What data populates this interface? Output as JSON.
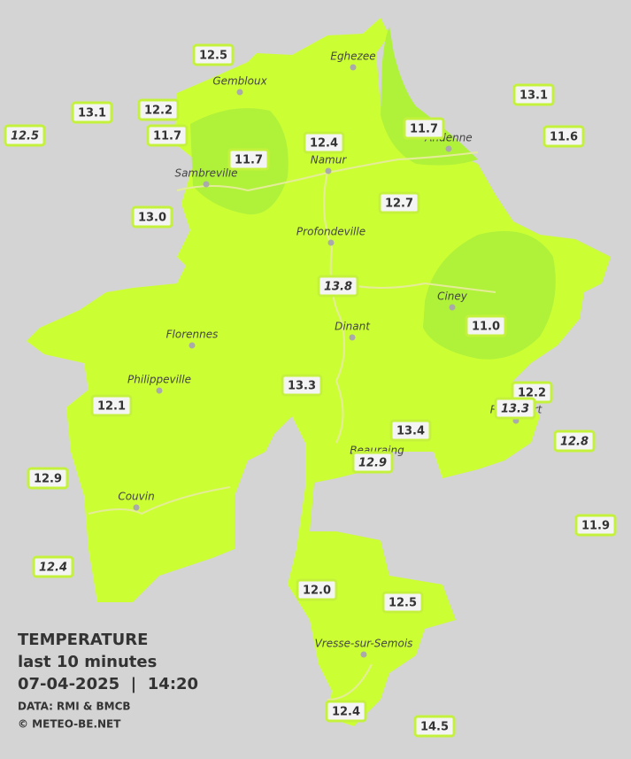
{
  "legend": {
    "title": "TEMPERATURE",
    "subtitle": "last 10 minutes",
    "datetime": "07-04-2025  |  14:20",
    "source": "DATA: RMI & BMCB",
    "copyright": "© METEO-BE.NET"
  },
  "cities": [
    "Eghezee",
    "Gembloux",
    "Andenne",
    "Namur",
    "Sambreville",
    "Profondeville",
    "Ciney",
    "Dinant",
    "Florennes",
    "Philippeville",
    "Rochefort",
    "Beauraing",
    "Couvin",
    "Vresse-sur-Semois"
  ],
  "readings": [
    {
      "text": "12.5",
      "italic": false
    },
    {
      "text": "13.1",
      "italic": false
    },
    {
      "text": "12.2",
      "italic": false
    },
    {
      "text": "12.5",
      "italic": true
    },
    {
      "text": "11.7",
      "italic": false
    },
    {
      "text": "11.7",
      "italic": false
    },
    {
      "text": "12.4",
      "italic": false
    },
    {
      "text": "11.7",
      "italic": false
    },
    {
      "text": "13.1",
      "italic": false
    },
    {
      "text": "11.6",
      "italic": false
    },
    {
      "text": "13.0",
      "italic": false
    },
    {
      "text": "12.7",
      "italic": false
    },
    {
      "text": "13.8",
      "italic": true
    },
    {
      "text": "11.0",
      "italic": false
    },
    {
      "text": "13.3",
      "italic": false
    },
    {
      "text": "12.2",
      "italic": false
    },
    {
      "text": "13.3",
      "italic": true
    },
    {
      "text": "12.1",
      "italic": false
    },
    {
      "text": "13.4",
      "italic": false
    },
    {
      "text": "12.9",
      "italic": true
    },
    {
      "text": "12.8",
      "italic": true
    },
    {
      "text": "12.9",
      "italic": false
    },
    {
      "text": "11.9",
      "italic": false
    },
    {
      "text": "12.4",
      "italic": true
    },
    {
      "text": "12.0",
      "italic": false
    },
    {
      "text": "12.5",
      "italic": false
    },
    {
      "text": "12.4",
      "italic": false
    },
    {
      "text": "14.5",
      "italic": false
    }
  ]
}
